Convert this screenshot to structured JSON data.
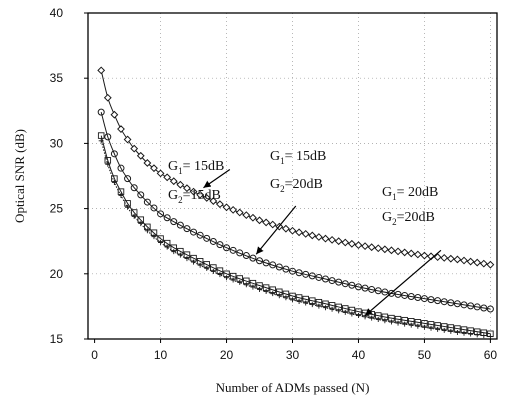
{
  "chart_data": {
    "type": "line",
    "title": "",
    "xlabel": "Number of  ADMs passed (N)",
    "ylabel": "Optical SNR (dB)",
    "xlim": [
      -1,
      61
    ],
    "ylim": [
      15,
      40
    ],
    "xticks": [
      0,
      10,
      20,
      30,
      40,
      50,
      60
    ],
    "yticks": [
      15,
      20,
      25,
      30,
      35,
      40
    ],
    "grid": "dotted",
    "series": [
      {
        "marker": "diamond",
        "color": "#1a1a1a",
        "x": [
          1,
          2,
          3,
          4,
          5,
          6,
          8,
          10,
          12,
          15,
          20,
          25,
          30,
          35,
          40,
          45,
          50,
          55,
          60
        ],
        "y": [
          35.6,
          33.5,
          32.2,
          31.1,
          30.3,
          29.6,
          28.5,
          27.7,
          27.1,
          26.3,
          25.1,
          24.1,
          23.3,
          22.7,
          22.2,
          21.8,
          21.4,
          21.1,
          20.7
        ]
      },
      {
        "marker": "circle",
        "color": "#1a1a1a",
        "x": [
          1,
          2,
          3,
          4,
          5,
          6,
          8,
          10,
          12,
          15,
          20,
          25,
          30,
          35,
          40,
          45,
          50,
          55,
          60
        ],
        "y": [
          32.4,
          30.5,
          29.2,
          28.1,
          27.3,
          26.6,
          25.5,
          24.6,
          24.0,
          23.2,
          22.0,
          21.0,
          20.2,
          19.6,
          19.0,
          18.5,
          18.1,
          17.7,
          17.3
        ]
      },
      {
        "marker": "square",
        "color": "#1a1a1a",
        "x": [
          1,
          2,
          3,
          4,
          5,
          6,
          8,
          10,
          12,
          15,
          20,
          25,
          30,
          35,
          40,
          45,
          50,
          55,
          60
        ],
        "y": [
          30.6,
          28.7,
          27.3,
          26.3,
          25.4,
          24.7,
          23.6,
          22.7,
          22.0,
          21.2,
          20.0,
          19.1,
          18.3,
          17.7,
          17.1,
          16.6,
          16.2,
          15.8,
          15.4
        ]
      },
      {
        "marker": "plus",
        "color": "#1a1a1a",
        "x": [
          1,
          2,
          3,
          4,
          5,
          6,
          8,
          10,
          12,
          15,
          20,
          25,
          30,
          35,
          40,
          45,
          50,
          55,
          60
        ],
        "y": [
          30.2,
          28.4,
          27.0,
          26.0,
          25.1,
          24.4,
          23.3,
          22.4,
          21.7,
          20.9,
          19.7,
          18.8,
          18.0,
          17.4,
          16.8,
          16.3,
          15.9,
          15.5,
          15.2
        ]
      }
    ],
    "annotations": [
      {
        "g1_value": "= 15dB",
        "g2_value": "=15dB",
        "arrow_from": [
          20.5,
          28.0
        ],
        "arrow_to": [
          16.5,
          26.6
        ]
      },
      {
        "g1_value": "= 15dB",
        "g2_value": "=20dB",
        "arrow_from": [
          30.5,
          25.2
        ],
        "arrow_to": [
          24.5,
          21.5
        ]
      },
      {
        "g1_value": "= 20dB",
        "g2_value": "=20dB",
        "arrow_from": [
          52.5,
          21.8
        ],
        "arrow_to": [
          41.0,
          16.8
        ]
      }
    ],
    "annotation_symbols": {
      "g": "G",
      "sub1": "1",
      "sub2": "2"
    }
  }
}
